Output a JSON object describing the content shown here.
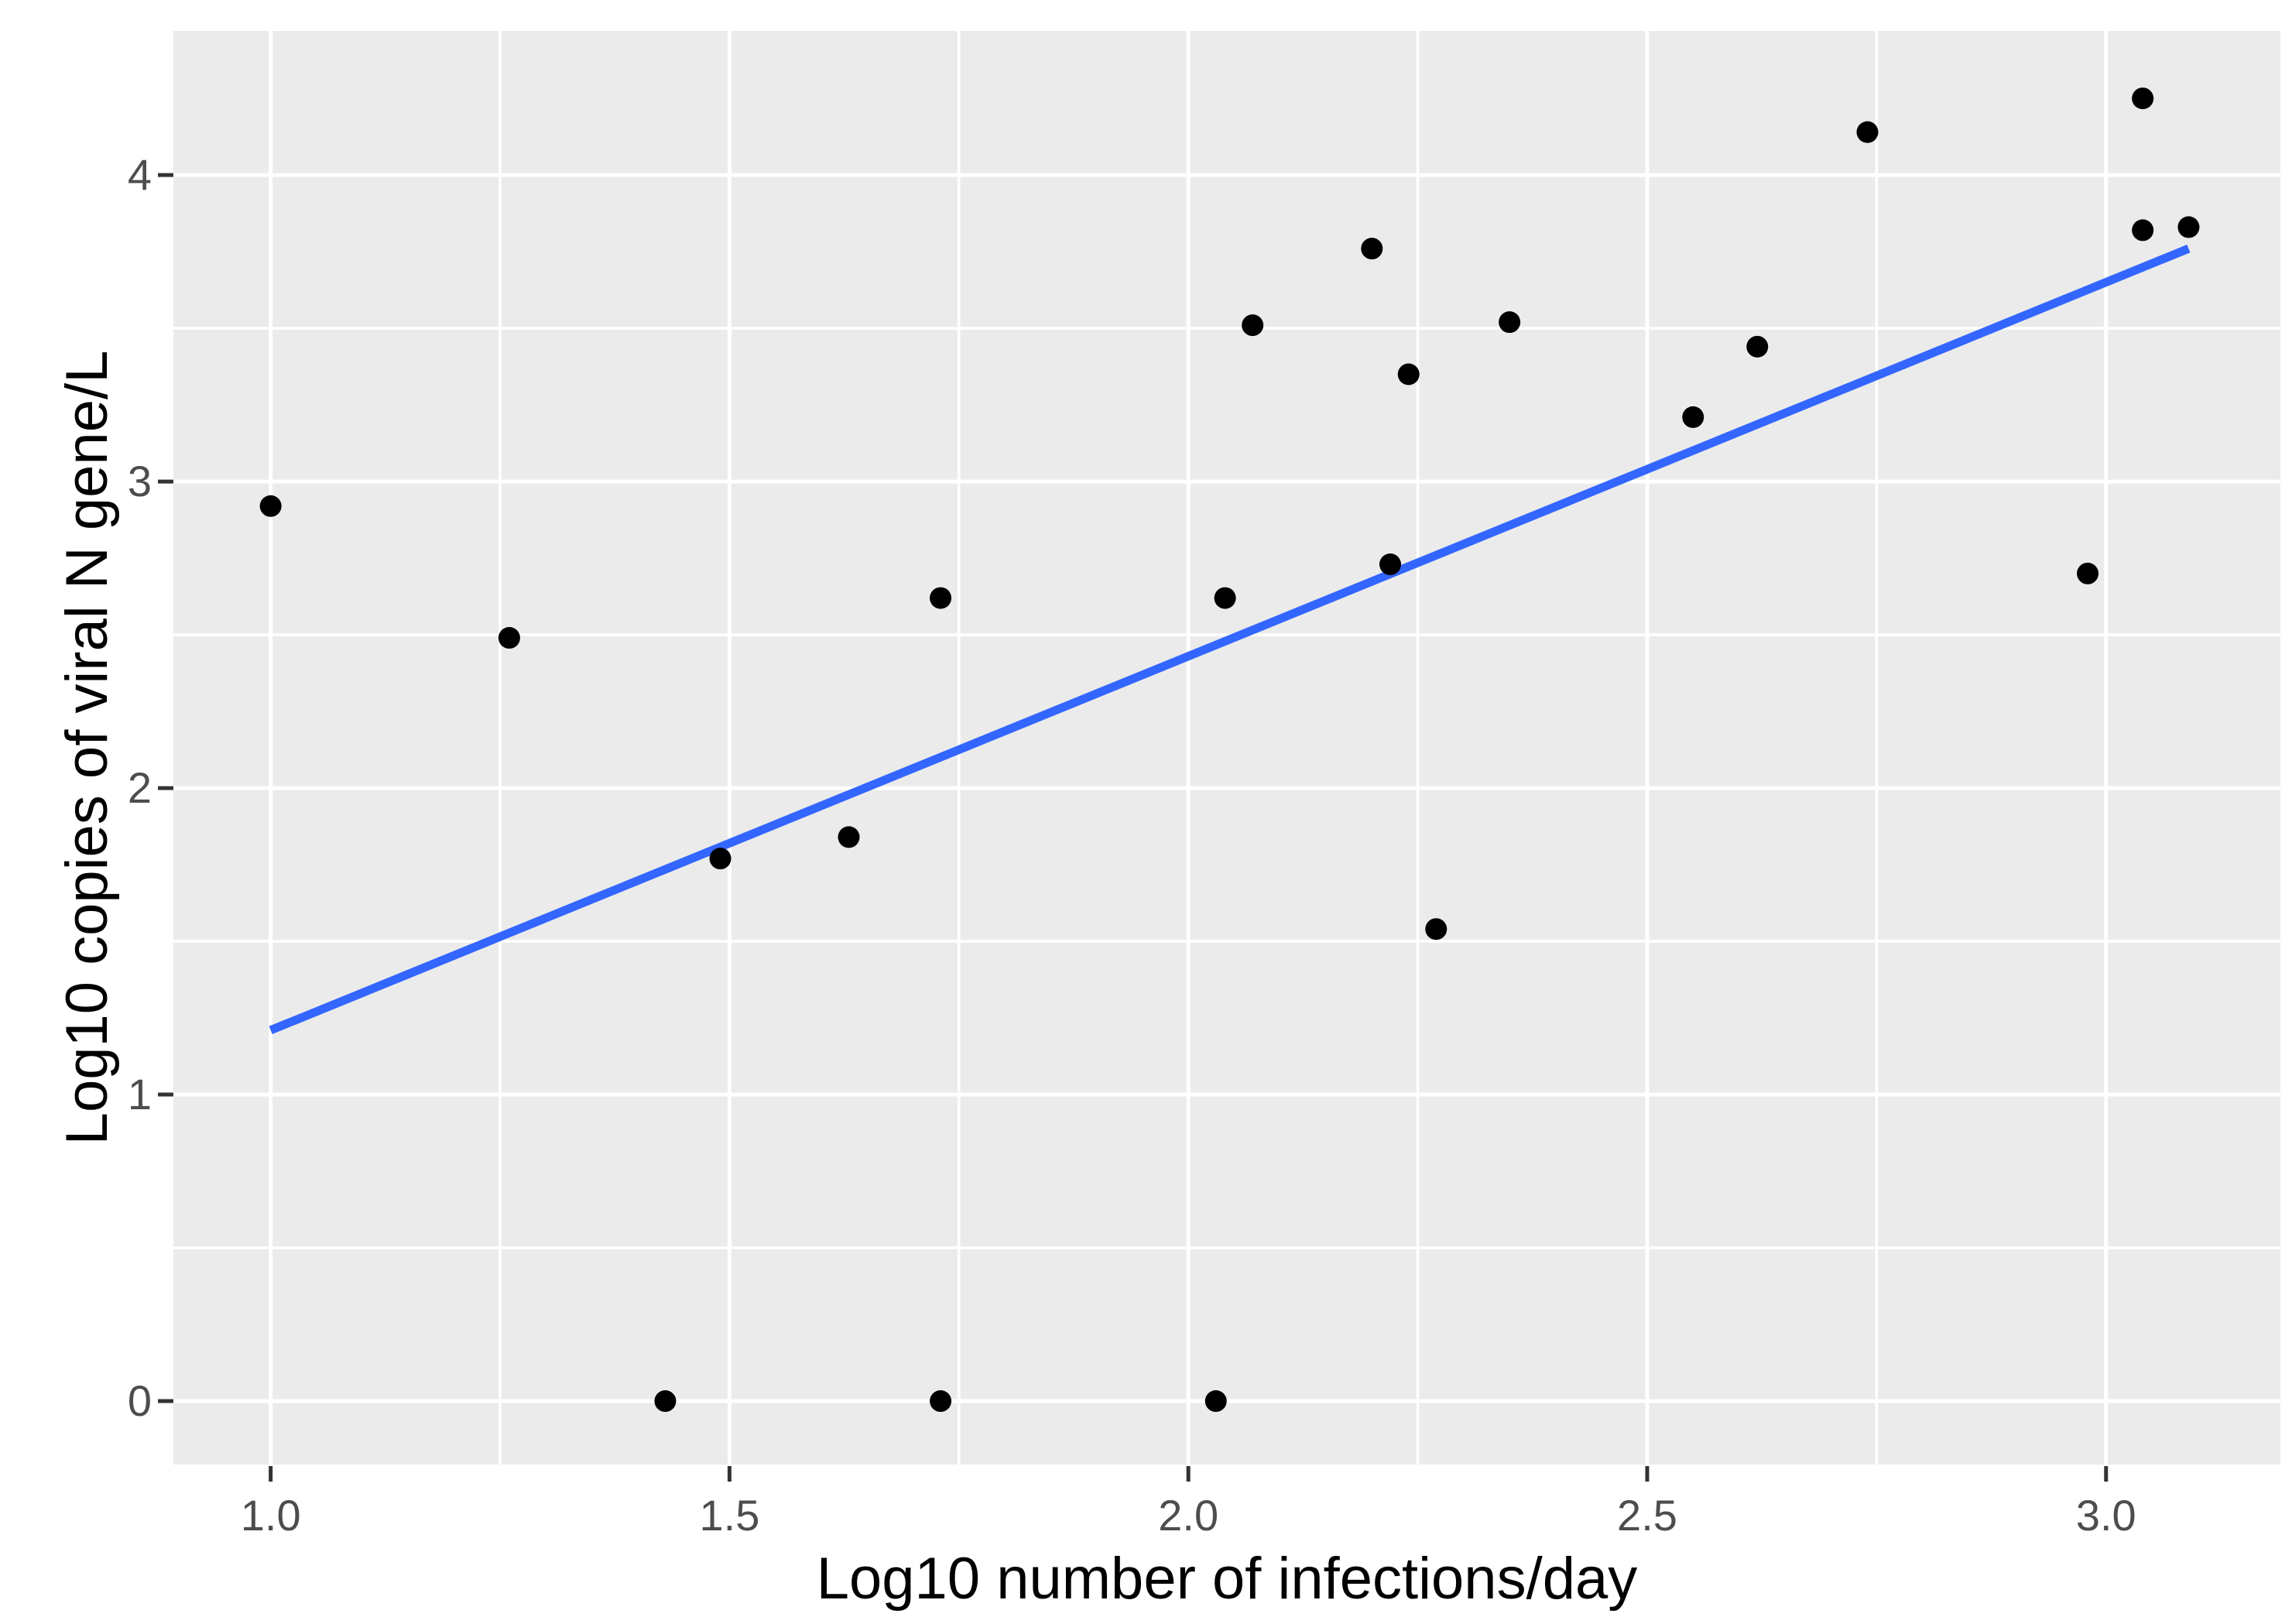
{
  "chart_data": {
    "type": "scatter",
    "title": "",
    "xlabel": "Log10 number of infections/day",
    "ylabel": "Log10 copies of viral N gene/L",
    "x_ticks": [
      1.0,
      1.5,
      2.0,
      2.5,
      3.0
    ],
    "x_tick_labels": [
      "1.0",
      "1.5",
      "2.0",
      "2.5",
      "3.0"
    ],
    "y_ticks": [
      0,
      1,
      2,
      3,
      4
    ],
    "y_tick_labels": [
      "0",
      "1",
      "2",
      "3",
      "4"
    ],
    "x_minor_ticks": [
      1.25,
      1.75,
      2.25,
      2.75
    ],
    "y_minor_ticks": [
      0.5,
      1.5,
      2.5,
      3.5
    ],
    "xlim": [
      0.894,
      3.19
    ],
    "ylim": [
      -0.207,
      4.47
    ],
    "grid": "major-and-minor-white-on-grey",
    "legend": "none",
    "points": [
      [
        1.0,
        2.92
      ],
      [
        1.26,
        2.49
      ],
      [
        1.43,
        0.0
      ],
      [
        1.49,
        1.77
      ],
      [
        1.63,
        1.84
      ],
      [
        1.73,
        2.62
      ],
      [
        1.73,
        0.0
      ],
      [
        2.03,
        0.0
      ],
      [
        2.04,
        2.62
      ],
      [
        2.07,
        3.51
      ],
      [
        2.2,
        3.76
      ],
      [
        2.22,
        2.73
      ],
      [
        2.24,
        3.35
      ],
      [
        2.27,
        1.54
      ],
      [
        2.35,
        3.52
      ],
      [
        2.55,
        3.21
      ],
      [
        2.62,
        3.44
      ],
      [
        2.74,
        4.14
      ],
      [
        2.98,
        2.7
      ],
      [
        3.04,
        4.25
      ],
      [
        3.04,
        3.82
      ],
      [
        3.09,
        3.83
      ]
    ],
    "trend_line": {
      "type": "linear",
      "x_start": 1.0,
      "y_start": 1.21,
      "x_end": 3.09,
      "y_end": 3.76,
      "color": "#3366FF"
    },
    "colors": {
      "figure_bg": "#FFFFFF",
      "panel_bg": "#EBEBEB",
      "grid": "#FFFFFF",
      "point": "#000000",
      "tick_mark": "#333333",
      "tick_label": "#4D4D4D",
      "axis_title": "#000000"
    }
  }
}
